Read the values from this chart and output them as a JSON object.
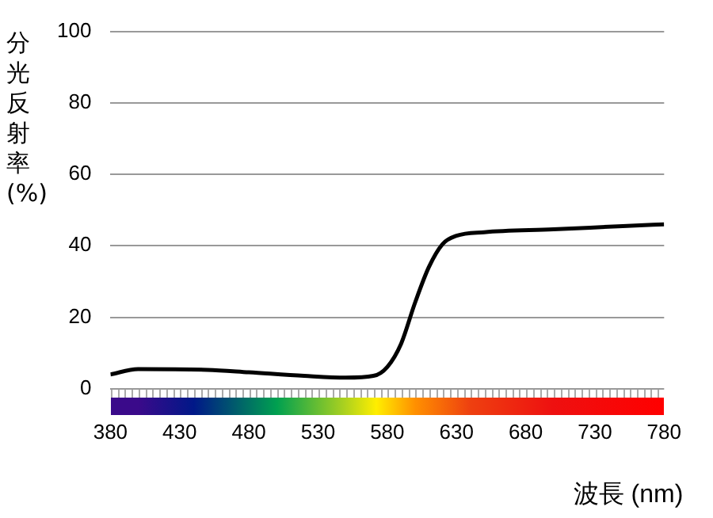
{
  "chart_data": {
    "type": "line",
    "ylabel": "分光反射率 (%)",
    "xlabel": "波長 (nm)",
    "xlim": [
      380,
      780
    ],
    "xticks": [
      380,
      430,
      480,
      530,
      580,
      630,
      680,
      730,
      780
    ],
    "ylim": [
      0,
      100
    ],
    "yticks": [
      0,
      20,
      40,
      60,
      80,
      100
    ],
    "grid": "y",
    "legend": false,
    "marker": "none",
    "line_style": "solid",
    "series": [
      {
        "color": "#000000",
        "x": [
          380,
          400,
          450,
          480,
          520,
          550,
          570,
          580,
          590,
          600,
          610,
          620,
          630,
          650,
          700,
          750,
          780
        ],
        "values": [
          4,
          5.5,
          5.3,
          4.6,
          3.6,
          3.1,
          3.6,
          6.1,
          12.6,
          24,
          34,
          40.5,
          42.8,
          43.8,
          44.6,
          45.5,
          46
        ]
      }
    ]
  }
}
